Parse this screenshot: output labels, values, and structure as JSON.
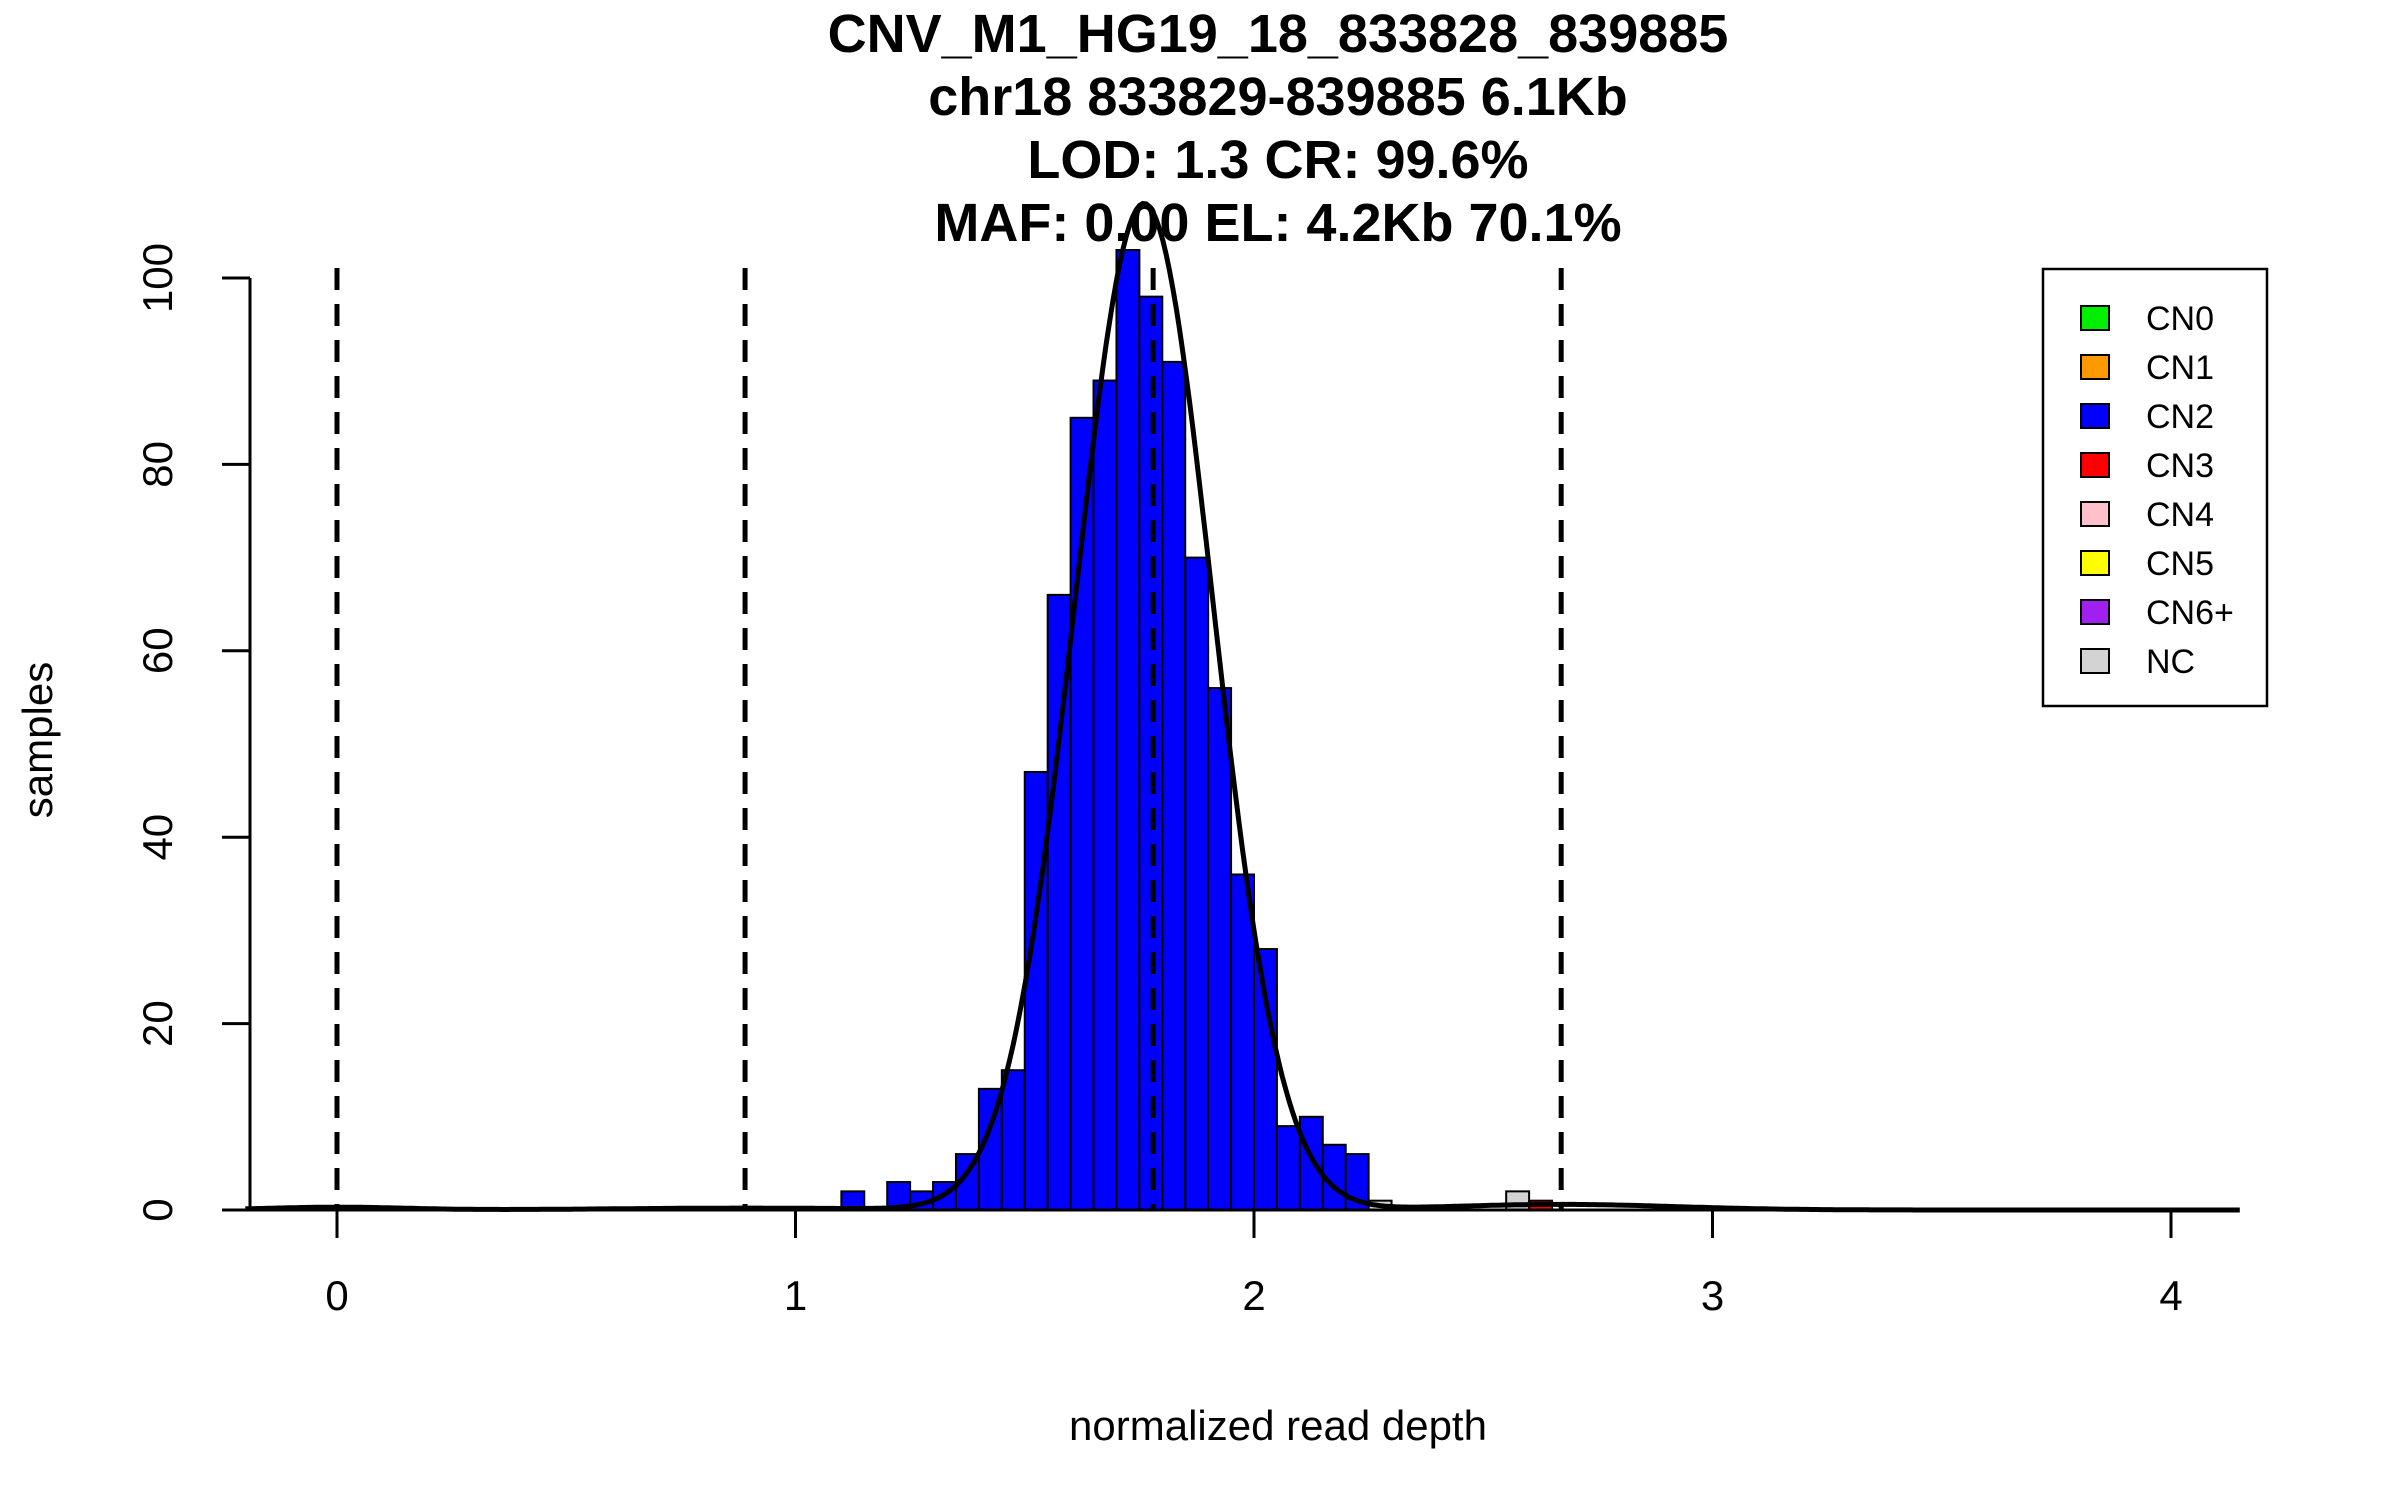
{
  "chart_data": {
    "type": "histogram",
    "title_lines": [
      "CNV_M1_HG19_18_833828_839885",
      "chr18 833829-839885 6.1Kb",
      "LOD: 1.3 CR: 99.6%",
      "MAF: 0.00 EL: 4.2Kb 70.1%"
    ],
    "xlabel": "normalized read depth",
    "ylabel": "samples",
    "xlim": [
      -0.2,
      4.15
    ],
    "ylim": [
      0,
      103
    ],
    "x_ticks": [
      0,
      1,
      2,
      3,
      4
    ],
    "x_tick_labels": [
      "0",
      "1",
      "2",
      "3",
      "4"
    ],
    "y_ticks": [
      0,
      20,
      40,
      60,
      80,
      100
    ],
    "y_tick_labels": [
      "0",
      "20",
      "40",
      "60",
      "80",
      "100"
    ],
    "bin_width": 0.05,
    "bins": [
      {
        "x0": 1.1,
        "cn": "CN2",
        "count": 2
      },
      {
        "x0": 1.15,
        "cn": "CN2",
        "count": 0
      },
      {
        "x0": 1.2,
        "cn": "CN2",
        "count": 3
      },
      {
        "x0": 1.25,
        "cn": "CN2",
        "count": 2
      },
      {
        "x0": 1.3,
        "cn": "CN2",
        "count": 3
      },
      {
        "x0": 1.35,
        "cn": "CN2",
        "count": 6
      },
      {
        "x0": 1.4,
        "cn": "CN2",
        "count": 13
      },
      {
        "x0": 1.45,
        "cn": "CN2",
        "count": 15
      },
      {
        "x0": 1.5,
        "cn": "CN2",
        "count": 47
      },
      {
        "x0": 1.55,
        "cn": "CN2",
        "count": 66
      },
      {
        "x0": 1.6,
        "cn": "CN2",
        "count": 85
      },
      {
        "x0": 1.65,
        "cn": "CN2",
        "count": 89
      },
      {
        "x0": 1.7,
        "cn": "CN2",
        "count": 103
      },
      {
        "x0": 1.75,
        "cn": "CN2",
        "count": 98
      },
      {
        "x0": 1.8,
        "cn": "CN2",
        "count": 91
      },
      {
        "x0": 1.85,
        "cn": "CN2",
        "count": 70
      },
      {
        "x0": 1.9,
        "cn": "CN2",
        "count": 56
      },
      {
        "x0": 1.95,
        "cn": "CN2",
        "count": 36
      },
      {
        "x0": 2.0,
        "cn": "CN2",
        "count": 28
      },
      {
        "x0": 2.05,
        "cn": "CN2",
        "count": 9
      },
      {
        "x0": 2.1,
        "cn": "CN2",
        "count": 10
      },
      {
        "x0": 2.15,
        "cn": "CN2",
        "count": 7
      },
      {
        "x0": 2.2,
        "cn": "CN2",
        "count": 6
      },
      {
        "x0": 2.25,
        "cn": "NC",
        "count": 1
      },
      {
        "x0": 2.55,
        "cn": "NC",
        "count": 2
      },
      {
        "x0": 2.6,
        "cn": "CN3",
        "count": 1
      }
    ],
    "threshold_lines": [
      0,
      0.89,
      1.78,
      2.67
    ],
    "density_curves": [
      {
        "mean": 1.76,
        "sd": 0.15,
        "peak": 108
      },
      {
        "mean": 2.67,
        "sd": 0.25,
        "peak": 0.6
      },
      {
        "mean": 0.0,
        "sd": 0.15,
        "peak": 0.3
      },
      {
        "mean": 0.89,
        "sd": 0.3,
        "peak": 0.2
      }
    ],
    "legend": [
      {
        "label": "CN0",
        "color": "#00ee00"
      },
      {
        "label": "CN1",
        "color": "#ff9900"
      },
      {
        "label": "CN2",
        "color": "#0000ff"
      },
      {
        "label": "CN3",
        "color": "#ff0000"
      },
      {
        "label": "CN4",
        "color": "#ffc0cb"
      },
      {
        "label": "CN5",
        "color": "#ffff00"
      },
      {
        "label": "CN6+",
        "color": "#a020f0"
      },
      {
        "label": "NC",
        "color": "#d3d3d3"
      }
    ],
    "legend_position": "top-right"
  }
}
